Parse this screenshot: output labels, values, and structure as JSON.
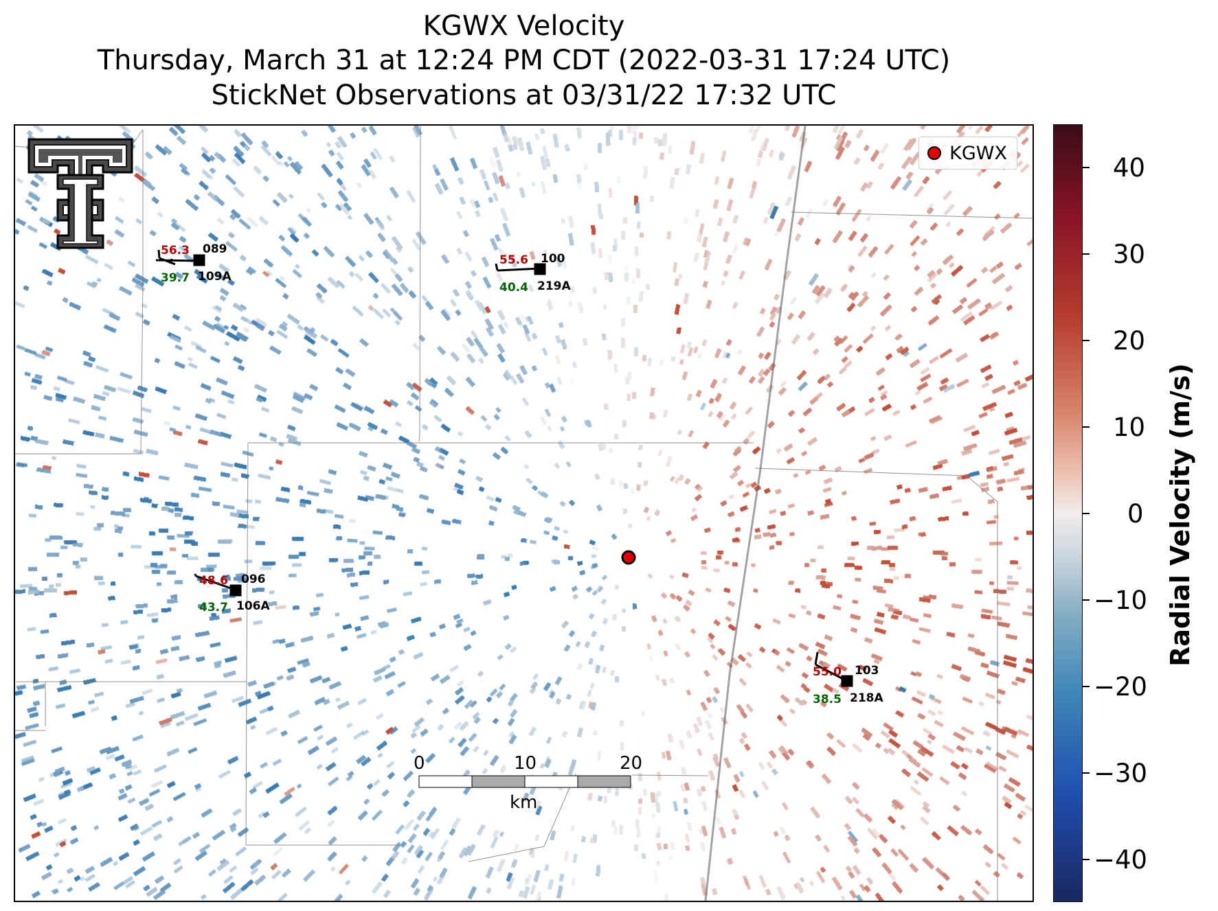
{
  "title": {
    "line1": "KGWX Velocity",
    "line2": "Thursday, March 31 at 12:24 PM CDT (2022-03-31 17:24 UTC)",
    "line3": "StickNet Observations at 03/31/22 17:32 UTC"
  },
  "legend": {
    "label": "KGWX",
    "marker_color": "#e00000"
  },
  "stations": [
    {
      "id": "109A",
      "temp": "56.3",
      "dew": "39.7",
      "dir": "089"
    },
    {
      "id": "219A",
      "temp": "55.6",
      "dew": "40.4",
      "dir": "100"
    },
    {
      "id": "106A",
      "temp": "48.6",
      "dew": "43.7",
      "dir": "096"
    },
    {
      "id": "218A",
      "temp": "55.0",
      "dew": "38.5",
      "dir": "103"
    }
  ],
  "scale_bar": {
    "ticks": [
      "0",
      "10",
      "20"
    ],
    "unit": "km"
  },
  "colorbar": {
    "label": "Radial Velocity (m/s)",
    "ticks": [
      "40",
      "30",
      "20",
      "10",
      "0",
      "−10",
      "−20",
      "−30",
      "−40"
    ],
    "range": [
      -45,
      45
    ]
  },
  "colors": {
    "inbound": "#3a7bb0",
    "outbound": "#c0503a",
    "near_zero": "#eeeeee",
    "radar_marker": "#e00000"
  }
}
